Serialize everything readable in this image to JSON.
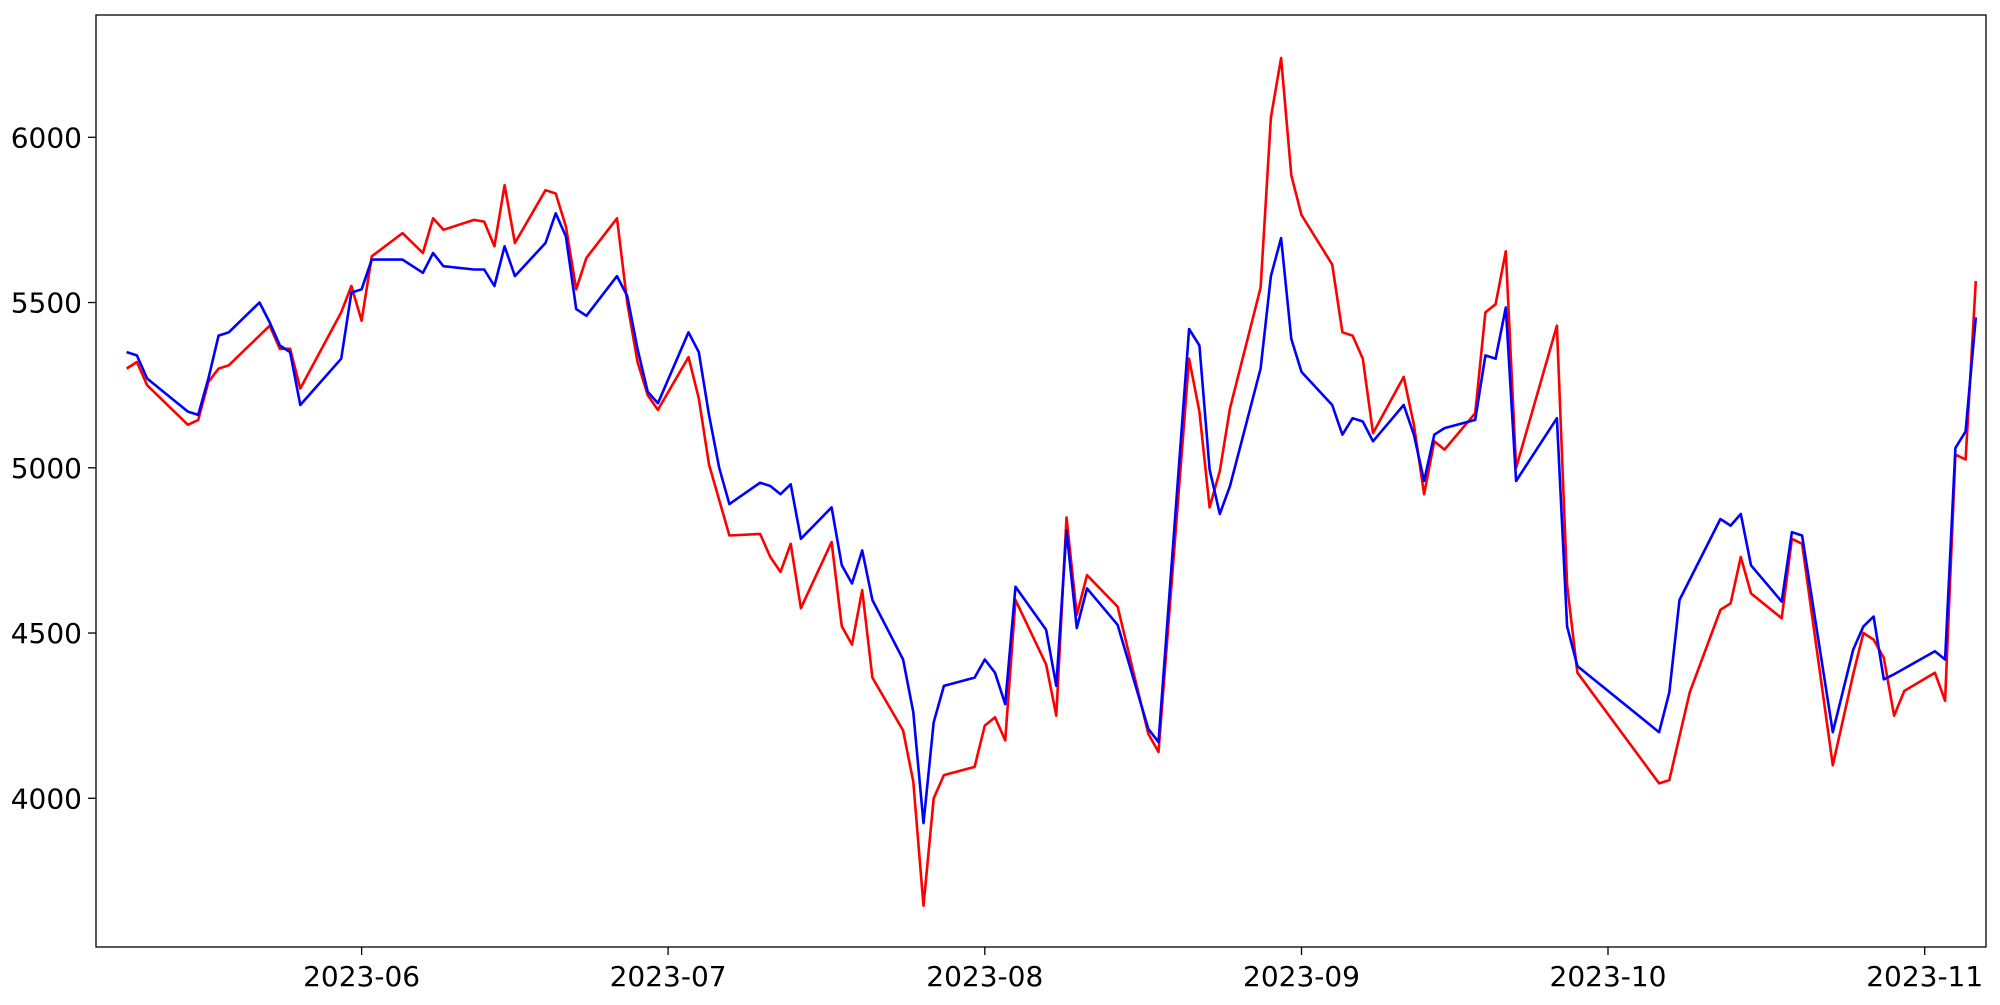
{
  "chart_data": {
    "type": "line",
    "title": "",
    "xlabel": "",
    "ylabel": "",
    "x_range": [
      "2023-05-06",
      "2023-11-07"
    ],
    "ylim": [
      3550,
      6370
    ],
    "x_ticks": [
      {
        "date": "2023-06-01",
        "label": "2023-06"
      },
      {
        "date": "2023-07-01",
        "label": "2023-07"
      },
      {
        "date": "2023-08-01",
        "label": "2023-08"
      },
      {
        "date": "2023-09-01",
        "label": "2023-09"
      },
      {
        "date": "2023-10-01",
        "label": "2023-10"
      },
      {
        "date": "2023-11-01",
        "label": "2023-11"
      }
    ],
    "y_ticks": [
      4000,
      4500,
      5000,
      5500,
      6000
    ],
    "grid": false,
    "series": [
      {
        "color": "#ff0000",
        "points": [
          [
            "2023-05-09",
            5300
          ],
          [
            "2023-05-10",
            5320
          ],
          [
            "2023-05-11",
            5250
          ],
          [
            "2023-05-15",
            5130
          ],
          [
            "2023-05-16",
            5145
          ],
          [
            "2023-05-17",
            5260
          ],
          [
            "2023-05-18",
            5300
          ],
          [
            "2023-05-19",
            5310
          ],
          [
            "2023-05-22",
            5400
          ],
          [
            "2023-05-23",
            5430
          ],
          [
            "2023-05-24",
            5360
          ],
          [
            "2023-05-25",
            5360
          ],
          [
            "2023-05-26",
            5240
          ],
          [
            "2023-05-30",
            5470
          ],
          [
            "2023-05-31",
            5550
          ],
          [
            "2023-06-01",
            5445
          ],
          [
            "2023-06-02",
            5640
          ],
          [
            "2023-06-05",
            5710
          ],
          [
            "2023-06-07",
            5650
          ],
          [
            "2023-06-08",
            5755
          ],
          [
            "2023-06-09",
            5720
          ],
          [
            "2023-06-12",
            5750
          ],
          [
            "2023-06-13",
            5745
          ],
          [
            "2023-06-14",
            5670
          ],
          [
            "2023-06-15",
            5855
          ],
          [
            "2023-06-16",
            5680
          ],
          [
            "2023-06-19",
            5840
          ],
          [
            "2023-06-20",
            5830
          ],
          [
            "2023-06-21",
            5730
          ],
          [
            "2023-06-22",
            5540
          ],
          [
            "2023-06-23",
            5635
          ],
          [
            "2023-06-26",
            5755
          ],
          [
            "2023-06-27",
            5500
          ],
          [
            "2023-06-28",
            5320
          ],
          [
            "2023-06-29",
            5220
          ],
          [
            "2023-06-30",
            5175
          ],
          [
            "2023-07-03",
            5335
          ],
          [
            "2023-07-04",
            5210
          ],
          [
            "2023-07-05",
            5010
          ],
          [
            "2023-07-07",
            4795
          ],
          [
            "2023-07-10",
            4800
          ],
          [
            "2023-07-11",
            4730
          ],
          [
            "2023-07-12",
            4685
          ],
          [
            "2023-07-13",
            4770
          ],
          [
            "2023-07-14",
            4575
          ],
          [
            "2023-07-17",
            4775
          ],
          [
            "2023-07-18",
            4520
          ],
          [
            "2023-07-19",
            4465
          ],
          [
            "2023-07-20",
            4630
          ],
          [
            "2023-07-21",
            4365
          ],
          [
            "2023-07-24",
            4205
          ],
          [
            "2023-07-25",
            4050
          ],
          [
            "2023-07-26",
            3675
          ],
          [
            "2023-07-27",
            4000
          ],
          [
            "2023-07-28",
            4070
          ],
          [
            "2023-07-31",
            4095
          ],
          [
            "2023-08-01",
            4220
          ],
          [
            "2023-08-02",
            4245
          ],
          [
            "2023-08-03",
            4175
          ],
          [
            "2023-08-04",
            4600
          ],
          [
            "2023-08-07",
            4405
          ],
          [
            "2023-08-08",
            4250
          ],
          [
            "2023-08-09",
            4850
          ],
          [
            "2023-08-10",
            4555
          ],
          [
            "2023-08-11",
            4675
          ],
          [
            "2023-08-14",
            4580
          ],
          [
            "2023-08-17",
            4195
          ],
          [
            "2023-08-18",
            4140
          ],
          [
            "2023-08-21",
            5330
          ],
          [
            "2023-08-22",
            5170
          ],
          [
            "2023-08-23",
            4880
          ],
          [
            "2023-08-24",
            4990
          ],
          [
            "2023-08-25",
            5180
          ],
          [
            "2023-08-28",
            5545
          ],
          [
            "2023-08-29",
            6060
          ],
          [
            "2023-08-30",
            6240
          ],
          [
            "2023-08-31",
            5885
          ],
          [
            "2023-09-01",
            5765
          ],
          [
            "2023-09-04",
            5615
          ],
          [
            "2023-09-05",
            5410
          ],
          [
            "2023-09-06",
            5400
          ],
          [
            "2023-09-07",
            5330
          ],
          [
            "2023-09-08",
            5105
          ],
          [
            "2023-09-11",
            5275
          ],
          [
            "2023-09-12",
            5130
          ],
          [
            "2023-09-13",
            4920
          ],
          [
            "2023-09-14",
            5080
          ],
          [
            "2023-09-15",
            5055
          ],
          [
            "2023-09-18",
            5165
          ],
          [
            "2023-09-19",
            5470
          ],
          [
            "2023-09-20",
            5495
          ],
          [
            "2023-09-21",
            5655
          ],
          [
            "2023-09-22",
            5000
          ],
          [
            "2023-09-26",
            5430
          ],
          [
            "2023-09-27",
            4645
          ],
          [
            "2023-09-28",
            4380
          ],
          [
            "2023-10-06",
            4045
          ],
          [
            "2023-10-07",
            4055
          ],
          [
            "2023-10-09",
            4320
          ],
          [
            "2023-10-12",
            4570
          ],
          [
            "2023-10-13",
            4590
          ],
          [
            "2023-10-14",
            4730
          ],
          [
            "2023-10-15",
            4620
          ],
          [
            "2023-10-18",
            4545
          ],
          [
            "2023-10-19",
            4785
          ],
          [
            "2023-10-20",
            4770
          ],
          [
            "2023-10-23",
            4100
          ],
          [
            "2023-10-25",
            4375
          ],
          [
            "2023-10-26",
            4500
          ],
          [
            "2023-10-27",
            4480
          ],
          [
            "2023-10-28",
            4425
          ],
          [
            "2023-10-29",
            4250
          ],
          [
            "2023-10-30",
            4325
          ],
          [
            "2023-11-02",
            4380
          ],
          [
            "2023-11-03",
            4295
          ],
          [
            "2023-11-04",
            5040
          ],
          [
            "2023-11-05",
            5025
          ],
          [
            "2023-11-06",
            5565
          ]
        ]
      },
      {
        "color": "#0000ff",
        "points": [
          [
            "2023-05-09",
            5350
          ],
          [
            "2023-05-10",
            5340
          ],
          [
            "2023-05-11",
            5270
          ],
          [
            "2023-05-15",
            5170
          ],
          [
            "2023-05-16",
            5160
          ],
          [
            "2023-05-17",
            5270
          ],
          [
            "2023-05-18",
            5400
          ],
          [
            "2023-05-19",
            5410
          ],
          [
            "2023-05-22",
            5500
          ],
          [
            "2023-05-23",
            5440
          ],
          [
            "2023-05-24",
            5370
          ],
          [
            "2023-05-25",
            5350
          ],
          [
            "2023-05-26",
            5190
          ],
          [
            "2023-05-30",
            5330
          ],
          [
            "2023-05-31",
            5530
          ],
          [
            "2023-06-01",
            5540
          ],
          [
            "2023-06-02",
            5630
          ],
          [
            "2023-06-05",
            5630
          ],
          [
            "2023-06-07",
            5590
          ],
          [
            "2023-06-08",
            5650
          ],
          [
            "2023-06-09",
            5610
          ],
          [
            "2023-06-12",
            5600
          ],
          [
            "2023-06-13",
            5600
          ],
          [
            "2023-06-14",
            5550
          ],
          [
            "2023-06-15",
            5670
          ],
          [
            "2023-06-16",
            5580
          ],
          [
            "2023-06-19",
            5680
          ],
          [
            "2023-06-20",
            5770
          ],
          [
            "2023-06-21",
            5700
          ],
          [
            "2023-06-22",
            5480
          ],
          [
            "2023-06-23",
            5460
          ],
          [
            "2023-06-26",
            5580
          ],
          [
            "2023-06-27",
            5520
          ],
          [
            "2023-06-28",
            5360
          ],
          [
            "2023-06-29",
            5230
          ],
          [
            "2023-06-30",
            5195
          ],
          [
            "2023-07-03",
            5410
          ],
          [
            "2023-07-04",
            5350
          ],
          [
            "2023-07-05",
            5160
          ],
          [
            "2023-07-06",
            5000
          ],
          [
            "2023-07-07",
            4890
          ],
          [
            "2023-07-10",
            4955
          ],
          [
            "2023-07-11",
            4945
          ],
          [
            "2023-07-12",
            4920
          ],
          [
            "2023-07-13",
            4950
          ],
          [
            "2023-07-14",
            4785
          ],
          [
            "2023-07-17",
            4880
          ],
          [
            "2023-07-18",
            4705
          ],
          [
            "2023-07-19",
            4650
          ],
          [
            "2023-07-20",
            4750
          ],
          [
            "2023-07-21",
            4600
          ],
          [
            "2023-07-24",
            4420
          ],
          [
            "2023-07-25",
            4260
          ],
          [
            "2023-07-26",
            3925
          ],
          [
            "2023-07-27",
            4230
          ],
          [
            "2023-07-28",
            4340
          ],
          [
            "2023-07-31",
            4365
          ],
          [
            "2023-08-01",
            4420
          ],
          [
            "2023-08-02",
            4380
          ],
          [
            "2023-08-03",
            4285
          ],
          [
            "2023-08-04",
            4640
          ],
          [
            "2023-08-07",
            4510
          ],
          [
            "2023-08-08",
            4340
          ],
          [
            "2023-08-09",
            4810
          ],
          [
            "2023-08-10",
            4515
          ],
          [
            "2023-08-11",
            4635
          ],
          [
            "2023-08-14",
            4525
          ],
          [
            "2023-08-17",
            4210
          ],
          [
            "2023-08-18",
            4170
          ],
          [
            "2023-08-21",
            5420
          ],
          [
            "2023-08-22",
            5370
          ],
          [
            "2023-08-23",
            4995
          ],
          [
            "2023-08-24",
            4860
          ],
          [
            "2023-08-25",
            4945
          ],
          [
            "2023-08-28",
            5300
          ],
          [
            "2023-08-29",
            5580
          ],
          [
            "2023-08-30",
            5695
          ],
          [
            "2023-08-31",
            5390
          ],
          [
            "2023-09-01",
            5290
          ],
          [
            "2023-09-04",
            5190
          ],
          [
            "2023-09-05",
            5100
          ],
          [
            "2023-09-06",
            5150
          ],
          [
            "2023-09-07",
            5140
          ],
          [
            "2023-09-08",
            5080
          ],
          [
            "2023-09-11",
            5190
          ],
          [
            "2023-09-12",
            5100
          ],
          [
            "2023-09-13",
            4960
          ],
          [
            "2023-09-14",
            5100
          ],
          [
            "2023-09-15",
            5120
          ],
          [
            "2023-09-18",
            5145
          ],
          [
            "2023-09-19",
            5340
          ],
          [
            "2023-09-20",
            5330
          ],
          [
            "2023-09-21",
            5485
          ],
          [
            "2023-09-22",
            4960
          ],
          [
            "2023-09-26",
            5150
          ],
          [
            "2023-09-27",
            4520
          ],
          [
            "2023-09-28",
            4400
          ],
          [
            "2023-10-06",
            4200
          ],
          [
            "2023-10-07",
            4320
          ],
          [
            "2023-10-08",
            4600
          ],
          [
            "2023-10-12",
            4845
          ],
          [
            "2023-10-13",
            4825
          ],
          [
            "2023-10-14",
            4860
          ],
          [
            "2023-10-15",
            4705
          ],
          [
            "2023-10-18",
            4595
          ],
          [
            "2023-10-19",
            4805
          ],
          [
            "2023-10-20",
            4795
          ],
          [
            "2023-10-23",
            4200
          ],
          [
            "2023-10-25",
            4450
          ],
          [
            "2023-10-26",
            4520
          ],
          [
            "2023-10-27",
            4550
          ],
          [
            "2023-10-28",
            4360
          ],
          [
            "2023-10-29",
            4375
          ],
          [
            "2023-11-02",
            4445
          ],
          [
            "2023-11-03",
            4420
          ],
          [
            "2023-11-04",
            5060
          ],
          [
            "2023-11-05",
            5110
          ],
          [
            "2023-11-06",
            5455
          ]
        ]
      }
    ]
  }
}
